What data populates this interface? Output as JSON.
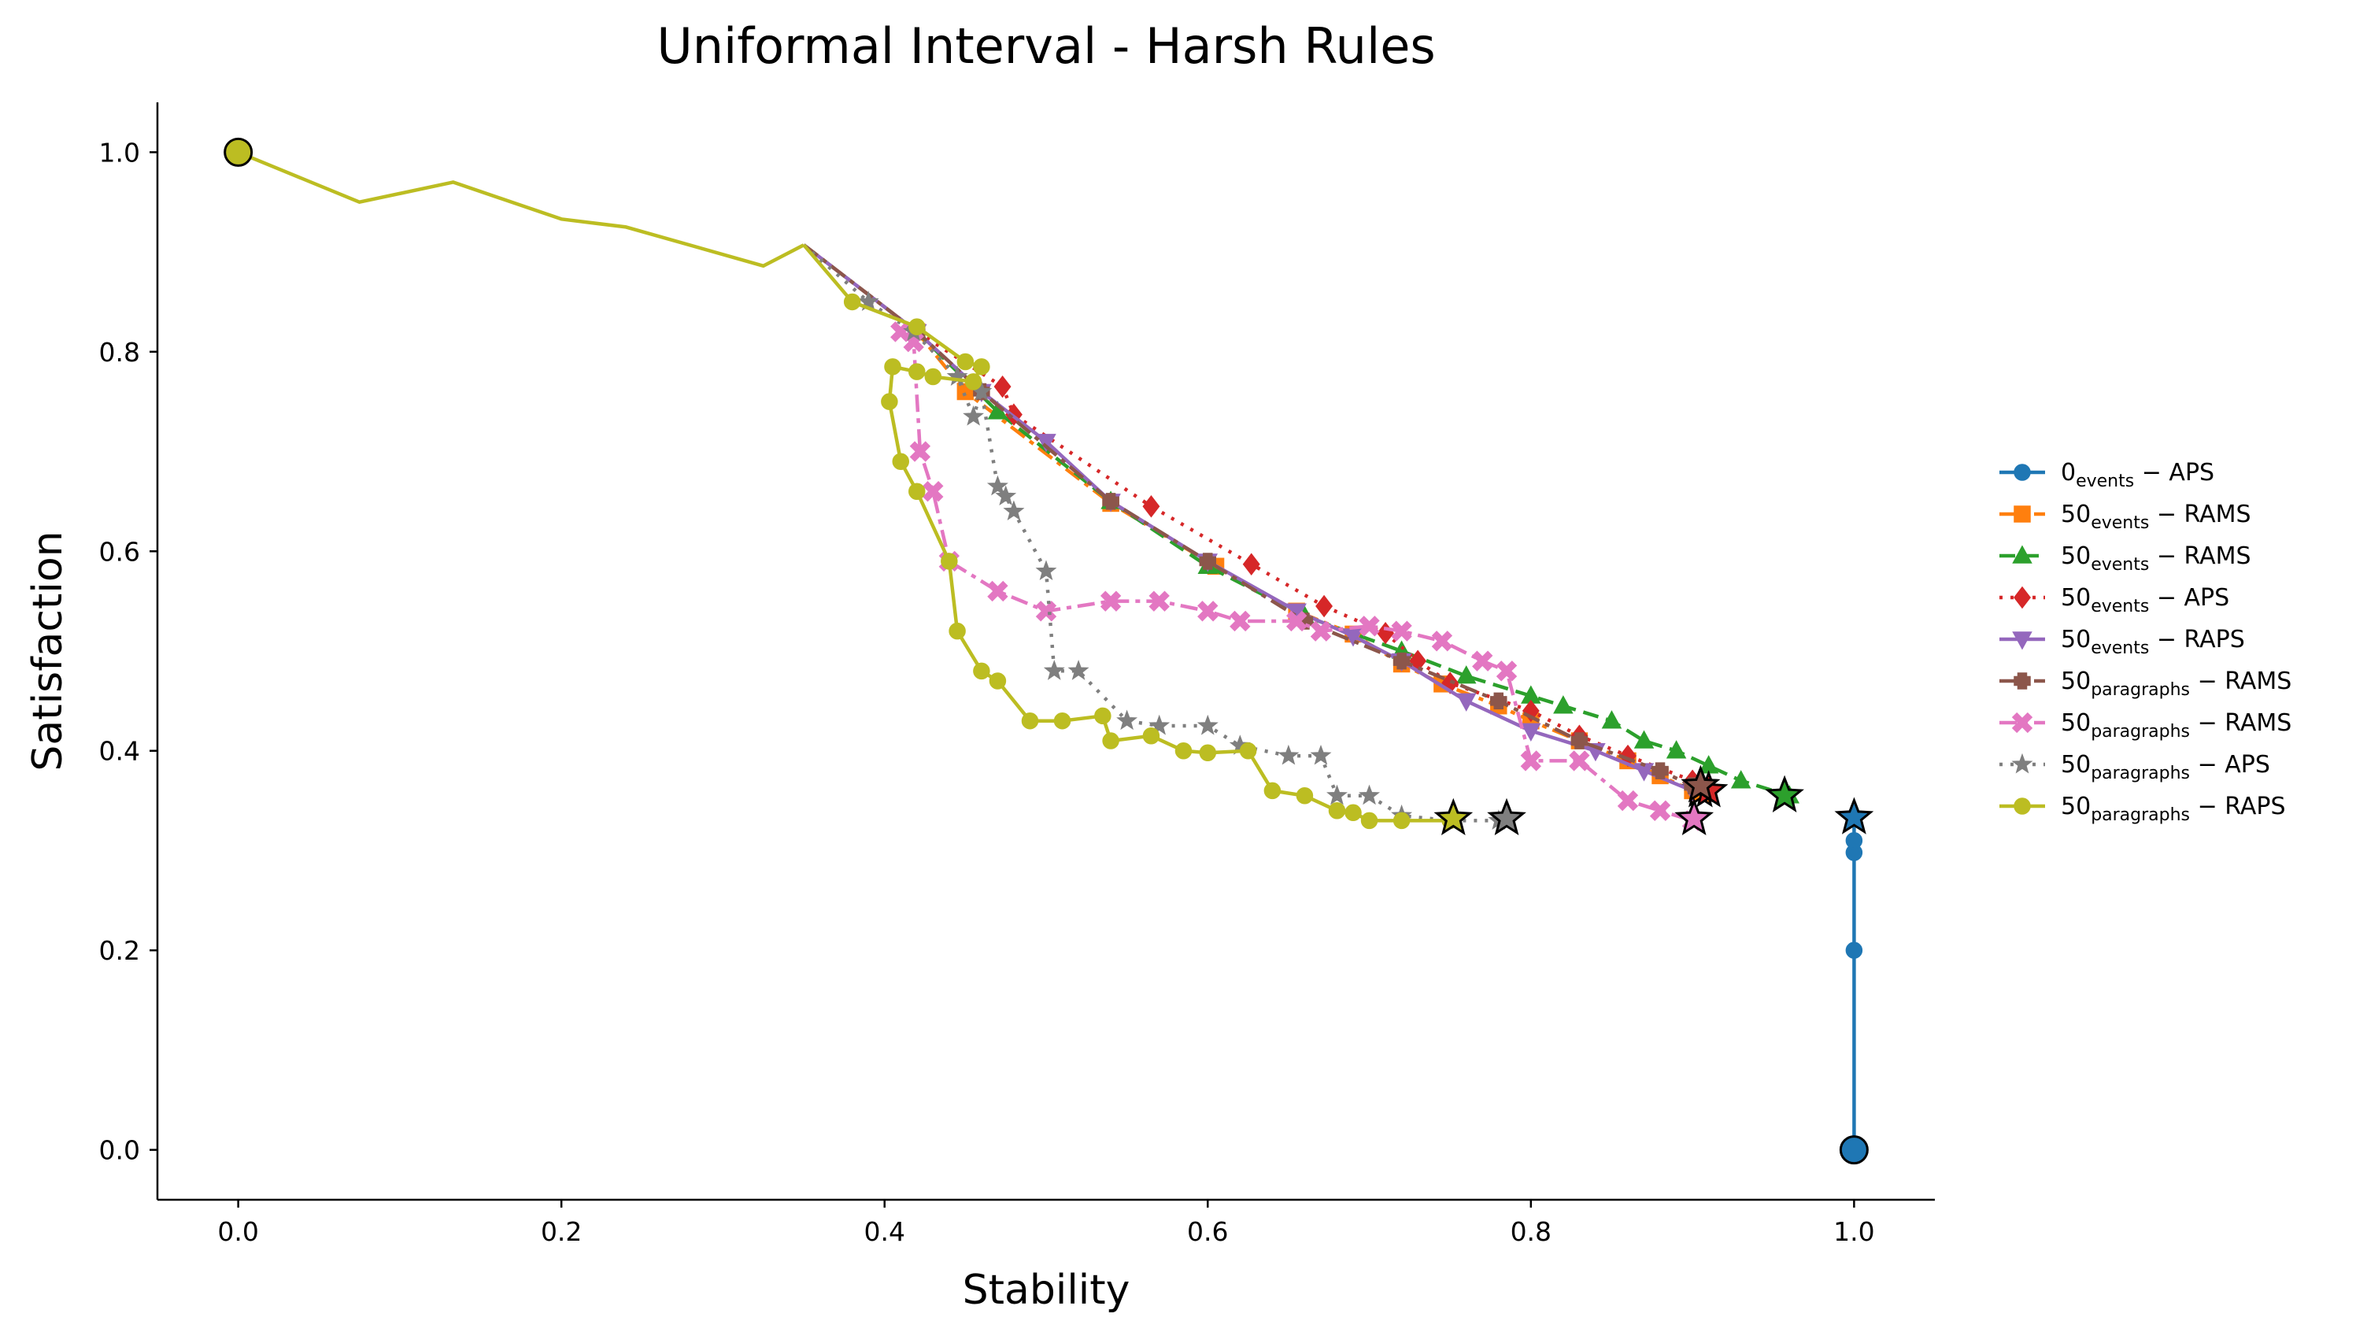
{
  "chart_data": {
    "type": "line",
    "title": "Uniformal Interval - Harsh Rules",
    "xlabel": "Stability",
    "ylabel": "Satisfaction",
    "xlim": [
      -0.05,
      1.05
    ],
    "ylim": [
      -0.05,
      1.05
    ],
    "xticks": [
      "0.0",
      "0.2",
      "0.4",
      "0.6",
      "0.8",
      "1.0"
    ],
    "yticks": [
      "0.0",
      "0.2",
      "0.4",
      "0.6",
      "0.8",
      "1.0"
    ],
    "grid": false,
    "legend_position": "center-right outside",
    "common_path": {
      "x": [
        0.0,
        0.075,
        0.133,
        0.2,
        0.24,
        0.325,
        0.35
      ],
      "y": [
        1.0,
        0.95,
        0.97,
        0.933,
        0.925,
        0.886,
        0.907
      ]
    },
    "series": [
      {
        "name_base": "0",
        "name_sub": "events",
        "name_rest": " − APS",
        "color": "#1f77b4",
        "dash": "",
        "marker": "circle",
        "x": [
          1.0,
          1.0,
          1.0,
          1.0,
          1.0
        ],
        "y": [
          0.0,
          0.2,
          0.298,
          0.31,
          0.333
        ],
        "start": [
          1.0,
          0.0
        ],
        "end": [
          1.0,
          0.333
        ]
      },
      {
        "name_base": "50",
        "name_sub": "events",
        "name_rest": " − RAMS",
        "color": "#ff7f0e",
        "dash": "22,8,6,8",
        "marker": "square",
        "x": [
          0.35,
          0.42,
          0.45,
          0.54,
          0.605,
          0.655,
          0.69,
          0.72,
          0.745,
          0.78,
          0.8,
          0.83,
          0.86,
          0.88,
          0.9
        ],
        "y": [
          0.907,
          0.82,
          0.76,
          0.648,
          0.585,
          0.54,
          0.517,
          0.487,
          0.467,
          0.445,
          0.43,
          0.41,
          0.39,
          0.375,
          0.36
        ],
        "end": [
          0.905,
          0.36
        ]
      },
      {
        "name_base": "50",
        "name_sub": "events",
        "name_rest": " − RAMS",
        "color": "#2ca02c",
        "dash": "20,10",
        "marker": "triangle-up",
        "x": [
          0.35,
          0.42,
          0.47,
          0.54,
          0.6,
          0.66,
          0.72,
          0.76,
          0.8,
          0.82,
          0.85,
          0.87,
          0.89,
          0.91,
          0.93,
          0.96
        ],
        "y": [
          0.907,
          0.82,
          0.74,
          0.65,
          0.585,
          0.535,
          0.5,
          0.475,
          0.455,
          0.445,
          0.43,
          0.41,
          0.4,
          0.385,
          0.37,
          0.355
        ],
        "end": [
          0.957,
          0.355
        ]
      },
      {
        "name_base": "50",
        "name_sub": "events",
        "name_rest": " − APS",
        "color": "#d62728",
        "dash": "4,10",
        "marker": "diamond",
        "x": [
          0.35,
          0.42,
          0.473,
          0.48,
          0.565,
          0.627,
          0.672,
          0.71,
          0.73,
          0.75,
          0.8,
          0.83,
          0.86,
          0.9
        ],
        "y": [
          0.907,
          0.82,
          0.765,
          0.737,
          0.645,
          0.587,
          0.545,
          0.518,
          0.49,
          0.468,
          0.44,
          0.415,
          0.395,
          0.37
        ],
        "end": [
          0.91,
          0.36
        ]
      },
      {
        "name_base": "50",
        "name_sub": "events",
        "name_rest": " − RAPS",
        "color": "#9467bd",
        "dash": "",
        "marker": "triangle-down",
        "x": [
          0.35,
          0.42,
          0.46,
          0.5,
          0.54,
          0.6,
          0.655,
          0.69,
          0.72,
          0.76,
          0.8,
          0.84,
          0.87,
          0.9
        ],
        "y": [
          0.907,
          0.82,
          0.76,
          0.71,
          0.65,
          0.59,
          0.54,
          0.515,
          0.49,
          0.45,
          0.42,
          0.4,
          0.38,
          0.36
        ],
        "end": [
          0.905,
          0.365
        ]
      },
      {
        "name_base": "50",
        "name_sub": "paragraphs",
        "name_rest": " − RAMS",
        "color": "#8c564b",
        "dash": "22,8,6,8",
        "marker": "plus",
        "x": [
          0.35,
          0.42,
          0.46,
          0.54,
          0.6,
          0.66,
          0.72,
          0.78,
          0.83,
          0.88,
          0.9
        ],
        "y": [
          0.907,
          0.82,
          0.76,
          0.65,
          0.59,
          0.53,
          0.49,
          0.45,
          0.41,
          0.38,
          0.365
        ],
        "end": [
          0.905,
          0.365
        ]
      },
      {
        "name_base": "50",
        "name_sub": "paragraphs",
        "name_rest": " − RAMS",
        "color": "#e377c2",
        "dash": "22,8,6,8",
        "marker": "x",
        "x": [
          0.41,
          0.418,
          0.422,
          0.43,
          0.44,
          0.47,
          0.5,
          0.54,
          0.57,
          0.6,
          0.62,
          0.655,
          0.67,
          0.7,
          0.72,
          0.745,
          0.77,
          0.785,
          0.8,
          0.83,
          0.86,
          0.88,
          0.9
        ],
        "y": [
          0.82,
          0.81,
          0.7,
          0.66,
          0.59,
          0.56,
          0.54,
          0.55,
          0.55,
          0.54,
          0.53,
          0.53,
          0.52,
          0.525,
          0.52,
          0.51,
          0.49,
          0.48,
          0.39,
          0.39,
          0.35,
          0.34,
          0.33
        ],
        "end": [
          0.901,
          0.332
        ]
      },
      {
        "name_base": "50",
        "name_sub": "paragraphs",
        "name_rest": " − APS",
        "color": "#7f7f7f",
        "dash": "4,10",
        "marker": "star",
        "x": [
          0.35,
          0.39,
          0.418,
          0.445,
          0.455,
          0.46,
          0.47,
          0.475,
          0.48,
          0.5,
          0.505,
          0.52,
          0.55,
          0.57,
          0.6,
          0.62,
          0.65,
          0.67,
          0.68,
          0.7,
          0.72,
          0.75,
          0.78
        ],
        "y": [
          0.907,
          0.85,
          0.82,
          0.775,
          0.735,
          0.76,
          0.665,
          0.655,
          0.64,
          0.58,
          0.48,
          0.48,
          0.43,
          0.425,
          0.425,
          0.405,
          0.395,
          0.395,
          0.355,
          0.355,
          0.335,
          0.33,
          0.33
        ],
        "end": [
          0.785,
          0.332
        ]
      },
      {
        "name_base": "50",
        "name_sub": "paragraphs",
        "name_rest": " − RAPS",
        "color": "#bcbd22",
        "dash": "",
        "marker": "circle",
        "x": [
          0.35,
          0.38,
          0.42,
          0.45,
          0.46,
          0.455,
          0.43,
          0.42,
          0.405,
          0.403,
          0.41,
          0.42,
          0.44,
          0.445,
          0.46,
          0.47,
          0.49,
          0.51,
          0.535,
          0.54,
          0.565,
          0.585,
          0.6,
          0.625,
          0.64,
          0.66,
          0.68,
          0.69,
          0.7,
          0.72,
          0.75
        ],
        "y": [
          0.907,
          0.85,
          0.825,
          0.79,
          0.785,
          0.77,
          0.775,
          0.78,
          0.785,
          0.75,
          0.69,
          0.66,
          0.59,
          0.52,
          0.48,
          0.47,
          0.43,
          0.43,
          0.435,
          0.41,
          0.415,
          0.4,
          0.398,
          0.4,
          0.36,
          0.355,
          0.34,
          0.338,
          0.33,
          0.33,
          0.33
        ],
        "end": [
          0.752,
          0.332
        ]
      }
    ]
  }
}
